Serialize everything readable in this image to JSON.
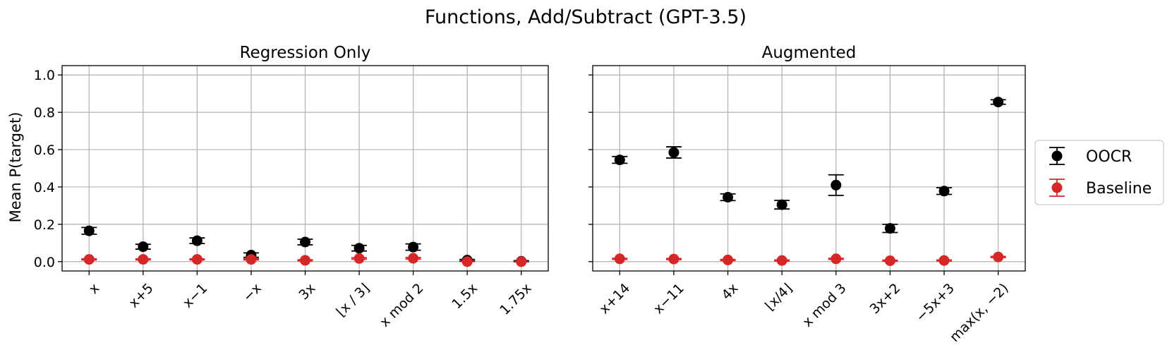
{
  "chart_data": {
    "title": "Functions, Add/Subtract (GPT-3.5)",
    "type": "scatter",
    "ylabel": "Mean P(target)",
    "ylim": [
      -0.05,
      1.05
    ],
    "yticks": [
      "0.0",
      "0.2",
      "0.4",
      "0.6",
      "0.8",
      "1.0"
    ],
    "grid": true,
    "legend": {
      "placement": "right",
      "entries": [
        {
          "name": "OOCR",
          "color": "#000000"
        },
        {
          "name": "Baseline",
          "color": "#d62728"
        }
      ]
    },
    "panels": [
      {
        "title": "Regression Only",
        "categories": [
          "x",
          "x+5",
          "x−1",
          "−x",
          "3x",
          "⌊x / 3⌋",
          "x mod 2",
          "1.5x",
          "1.75x"
        ],
        "series": [
          {
            "name": "OOCR",
            "values": [
              0.165,
              0.08,
              0.112,
              0.035,
              0.105,
              0.072,
              0.078,
              0.008,
              0.002
            ],
            "errors": [
              0.018,
              0.013,
              0.015,
              0.012,
              0.015,
              0.015,
              0.017,
              0.004,
              0.003
            ]
          },
          {
            "name": "Baseline",
            "values": [
              0.012,
              0.012,
              0.012,
              0.012,
              0.007,
              0.017,
              0.018,
              0.0,
              0.0
            ],
            "errors": [
              0.003,
              0.003,
              0.003,
              0.003,
              0.003,
              0.004,
              0.004,
              0.0,
              0.0
            ]
          }
        ]
      },
      {
        "title": "Augmented",
        "categories": [
          "x+14",
          "x−11",
          "4x",
          "⌊x/4⌋",
          "x mod 3",
          "3x+2",
          "−5x+3",
          "max(x, −2)"
        ],
        "series": [
          {
            "name": "OOCR",
            "values": [
              0.545,
              0.585,
              0.345,
              0.305,
              0.41,
              0.178,
              0.378,
              0.855
            ],
            "errors": [
              0.018,
              0.03,
              0.018,
              0.023,
              0.055,
              0.022,
              0.018,
              0.012
            ]
          },
          {
            "name": "Baseline",
            "values": [
              0.015,
              0.014,
              0.009,
              0.006,
              0.015,
              0.005,
              0.006,
              0.025
            ],
            "errors": [
              0.003,
              0.003,
              0.003,
              0.003,
              0.003,
              0.003,
              0.003,
              0.003
            ]
          }
        ]
      }
    ]
  }
}
